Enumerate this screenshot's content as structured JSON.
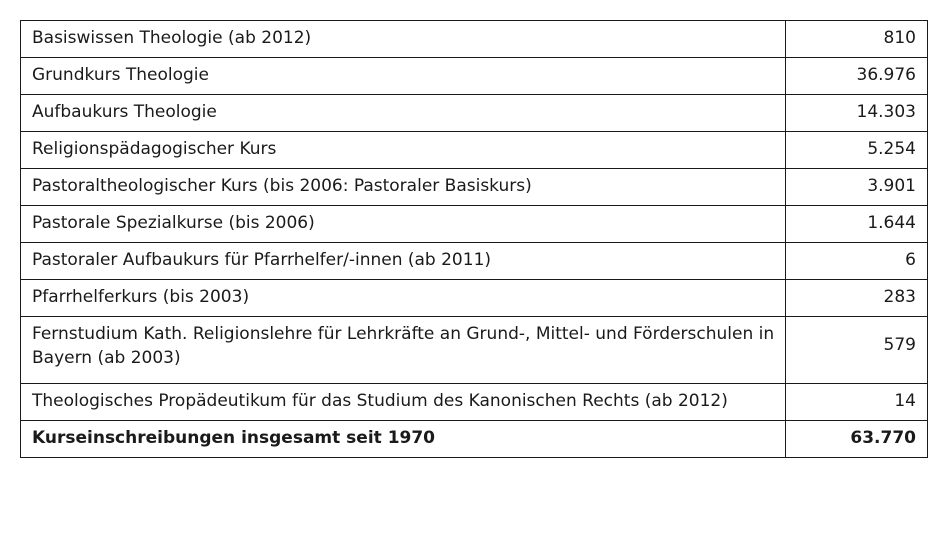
{
  "table": {
    "rows": [
      {
        "label": "Basiswissen Theologie (ab 2012)",
        "value": "810"
      },
      {
        "label": "Grundkurs Theologie",
        "value": "36.976"
      },
      {
        "label": "Aufbaukurs Theologie",
        "value": "14.303"
      },
      {
        "label": "Religionspädagogischer Kurs",
        "value": "5.254"
      },
      {
        "label": "Pastoraltheologischer Kurs (bis 2006: Pastoraler Basiskurs)",
        "value": "3.901"
      },
      {
        "label": "Pastorale Spezialkurse (bis 2006)",
        "value": "1.644"
      },
      {
        "label": "Pastoraler Aufbaukurs für Pfarrhelfer/-innen (ab 2011)",
        "value": "6"
      },
      {
        "label": "Pfarrhelferkurs (bis 2003)",
        "value": "283"
      },
      {
        "label": "Fernstudium Kath. Religionslehre für Lehrkräfte an Grund-, Mittel- und Förderschulen in Bayern (ab 2003)",
        "value": "579"
      },
      {
        "label": "Theologisches Propädeutikum für das Studium des Kanonischen Rechts (ab 2012)",
        "value": "14"
      }
    ],
    "total": {
      "label": "Kurseinschreibungen insgesamt seit 1970",
      "value": "63.770"
    }
  }
}
